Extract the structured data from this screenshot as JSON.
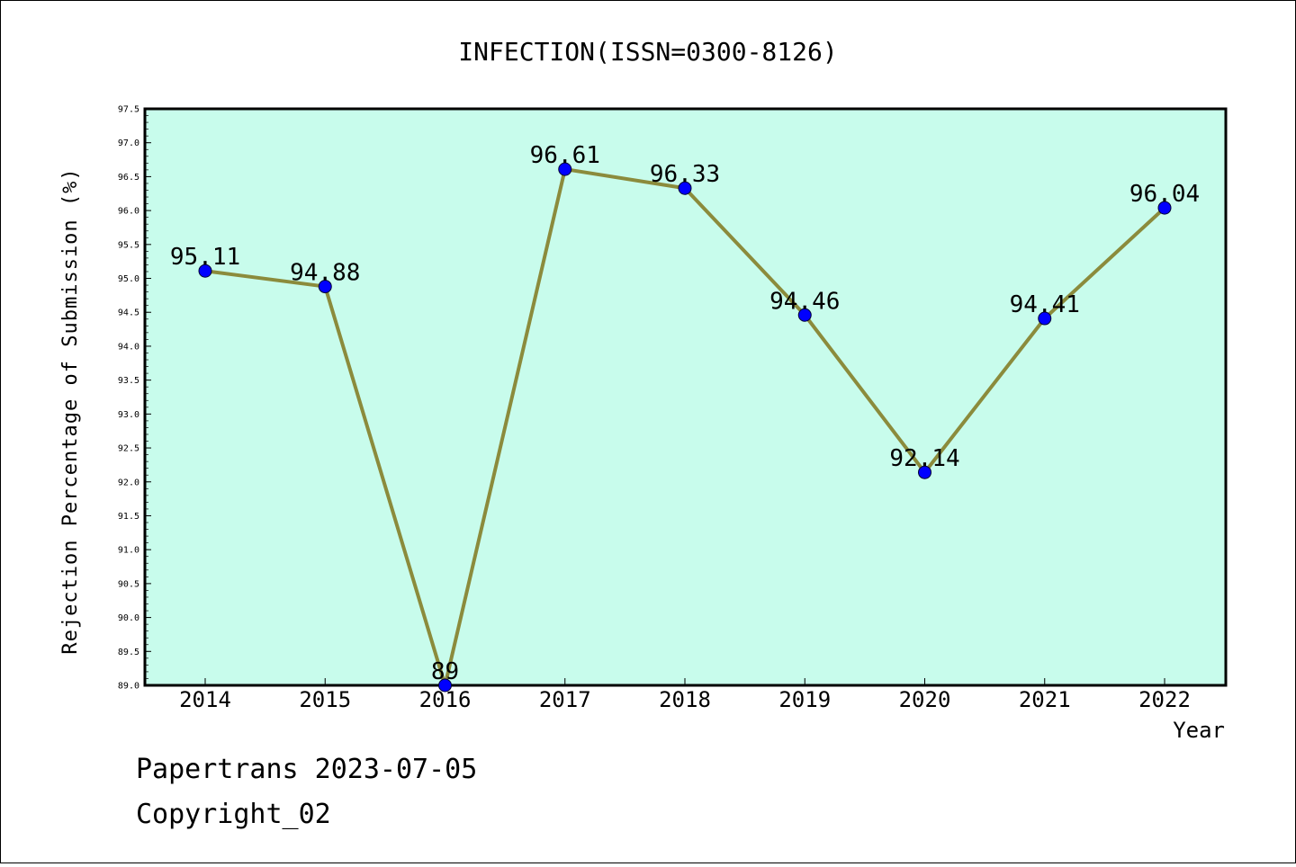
{
  "chart_data": {
    "type": "line",
    "title": "INFECTION(ISSN=0300-8126)",
    "xlabel": "Year",
    "ylabel": "Rejection Percentage of Submission (%)",
    "categories": [
      "2014",
      "2015",
      "2016",
      "2017",
      "2018",
      "2019",
      "2020",
      "2021",
      "2022"
    ],
    "values": [
      95.11,
      94.88,
      89,
      96.61,
      96.33,
      94.46,
      92.14,
      94.41,
      96.04
    ],
    "data_labels": [
      "95.11",
      "94.88",
      "89",
      "96.61",
      "96.33",
      "94.46",
      "92.14",
      "94.41",
      "96.04"
    ],
    "ylim": [
      89.0,
      97.5
    ],
    "yticks": [
      "89.0",
      "89.5",
      "90.0",
      "90.5",
      "91.0",
      "91.5",
      "92.0",
      "92.5",
      "93.0",
      "93.5",
      "94.0",
      "94.5",
      "95.0",
      "95.5",
      "96.0",
      "96.5",
      "97.0",
      "97.5"
    ],
    "grid": false,
    "colors": {
      "plot_background": "#c8fcec",
      "line": "#8b8b3c",
      "marker": "#0000ff"
    }
  },
  "footer": {
    "line1": "Papertrans 2023-07-05",
    "line2": "Copyright_02"
  }
}
